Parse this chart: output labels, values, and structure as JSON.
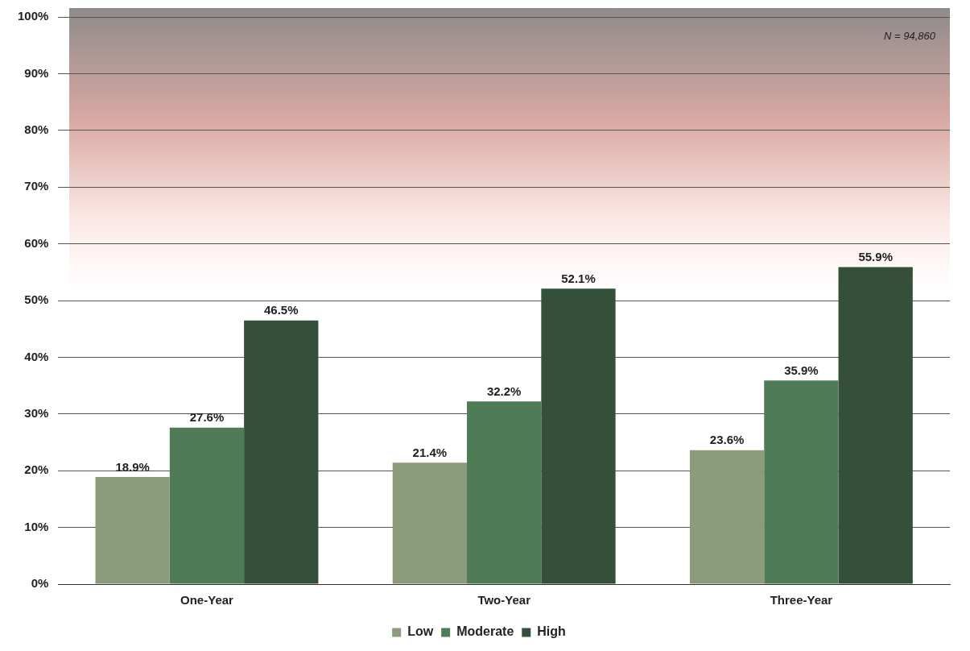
{
  "chart_data": {
    "type": "bar",
    "categories": [
      "One-Year",
      "Two-Year",
      "Three-Year"
    ],
    "series": [
      {
        "name": "Low",
        "color": "#8c9c7a",
        "values": [
          18.9,
          21.4,
          23.6
        ]
      },
      {
        "name": "Moderate",
        "color": "#4f7b57",
        "values": [
          27.6,
          32.2,
          35.9
        ]
      },
      {
        "name": "High",
        "color": "#34503b",
        "values": [
          46.5,
          52.1,
          55.9
        ]
      }
    ],
    "ylim": [
      0,
      100
    ],
    "yticks": [
      {
        "value": 0,
        "label": "0%"
      },
      {
        "value": 10,
        "label": "10%"
      },
      {
        "value": 20,
        "label": "20%"
      },
      {
        "value": 30,
        "label": "30%"
      },
      {
        "value": 40,
        "label": "40%"
      },
      {
        "value": 50,
        "label": "50%"
      },
      {
        "value": 60,
        "label": "60%"
      },
      {
        "value": 70,
        "label": "70%"
      },
      {
        "value": 80,
        "label": "80%"
      },
      {
        "value": 90,
        "label": "90%"
      },
      {
        "value": 100,
        "label": "100%"
      }
    ],
    "value_labels": [
      [
        "18.9%",
        "21.4%",
        "23.6%"
      ],
      [
        "27.6%",
        "32.2%",
        "35.9%"
      ],
      [
        "46.5%",
        "52.1%",
        "55.9%"
      ]
    ],
    "annotations": [
      "N = 94,860"
    ],
    "grid": "y",
    "legend": "bottom"
  }
}
